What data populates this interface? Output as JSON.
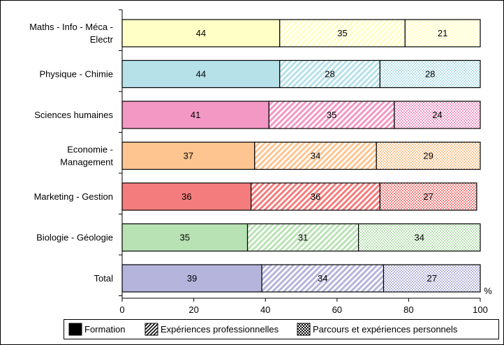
{
  "chart_data": {
    "type": "bar",
    "orientation": "horizontal",
    "stacked": true,
    "categories": [
      [
        "Maths - Info - Méca -",
        "Electr"
      ],
      [
        "Physique - Chimie"
      ],
      [
        "Sciences humaines"
      ],
      [
        "Economie -",
        "Management"
      ],
      [
        "Marketing - Gestion"
      ],
      [
        "Biologie - Géologie"
      ],
      [
        "Total"
      ]
    ],
    "series": [
      {
        "name": "Formation",
        "pattern": "solid",
        "values": [
          44,
          44,
          41,
          37,
          36,
          35,
          39
        ]
      },
      {
        "name": "Expériences professionnelles",
        "pattern": "diagonal",
        "values": [
          35,
          28,
          35,
          34,
          36,
          31,
          34
        ]
      },
      {
        "name": "Parcours et expériences personnels",
        "pattern": "checker",
        "values": [
          21,
          28,
          24,
          29,
          27,
          34,
          27
        ]
      }
    ],
    "category_colors": [
      "#ffffc6",
      "#b6e1e9",
      "#f397c4",
      "#fec591",
      "#f47c7c",
      "#b9e2b4",
      "#b4b4dc"
    ],
    "xlim": [
      0,
      100
    ],
    "xticks": [
      "0",
      "20",
      "40",
      "60",
      "80",
      "100"
    ],
    "xunit": "%",
    "legend_position": "bottom",
    "grid": false
  }
}
